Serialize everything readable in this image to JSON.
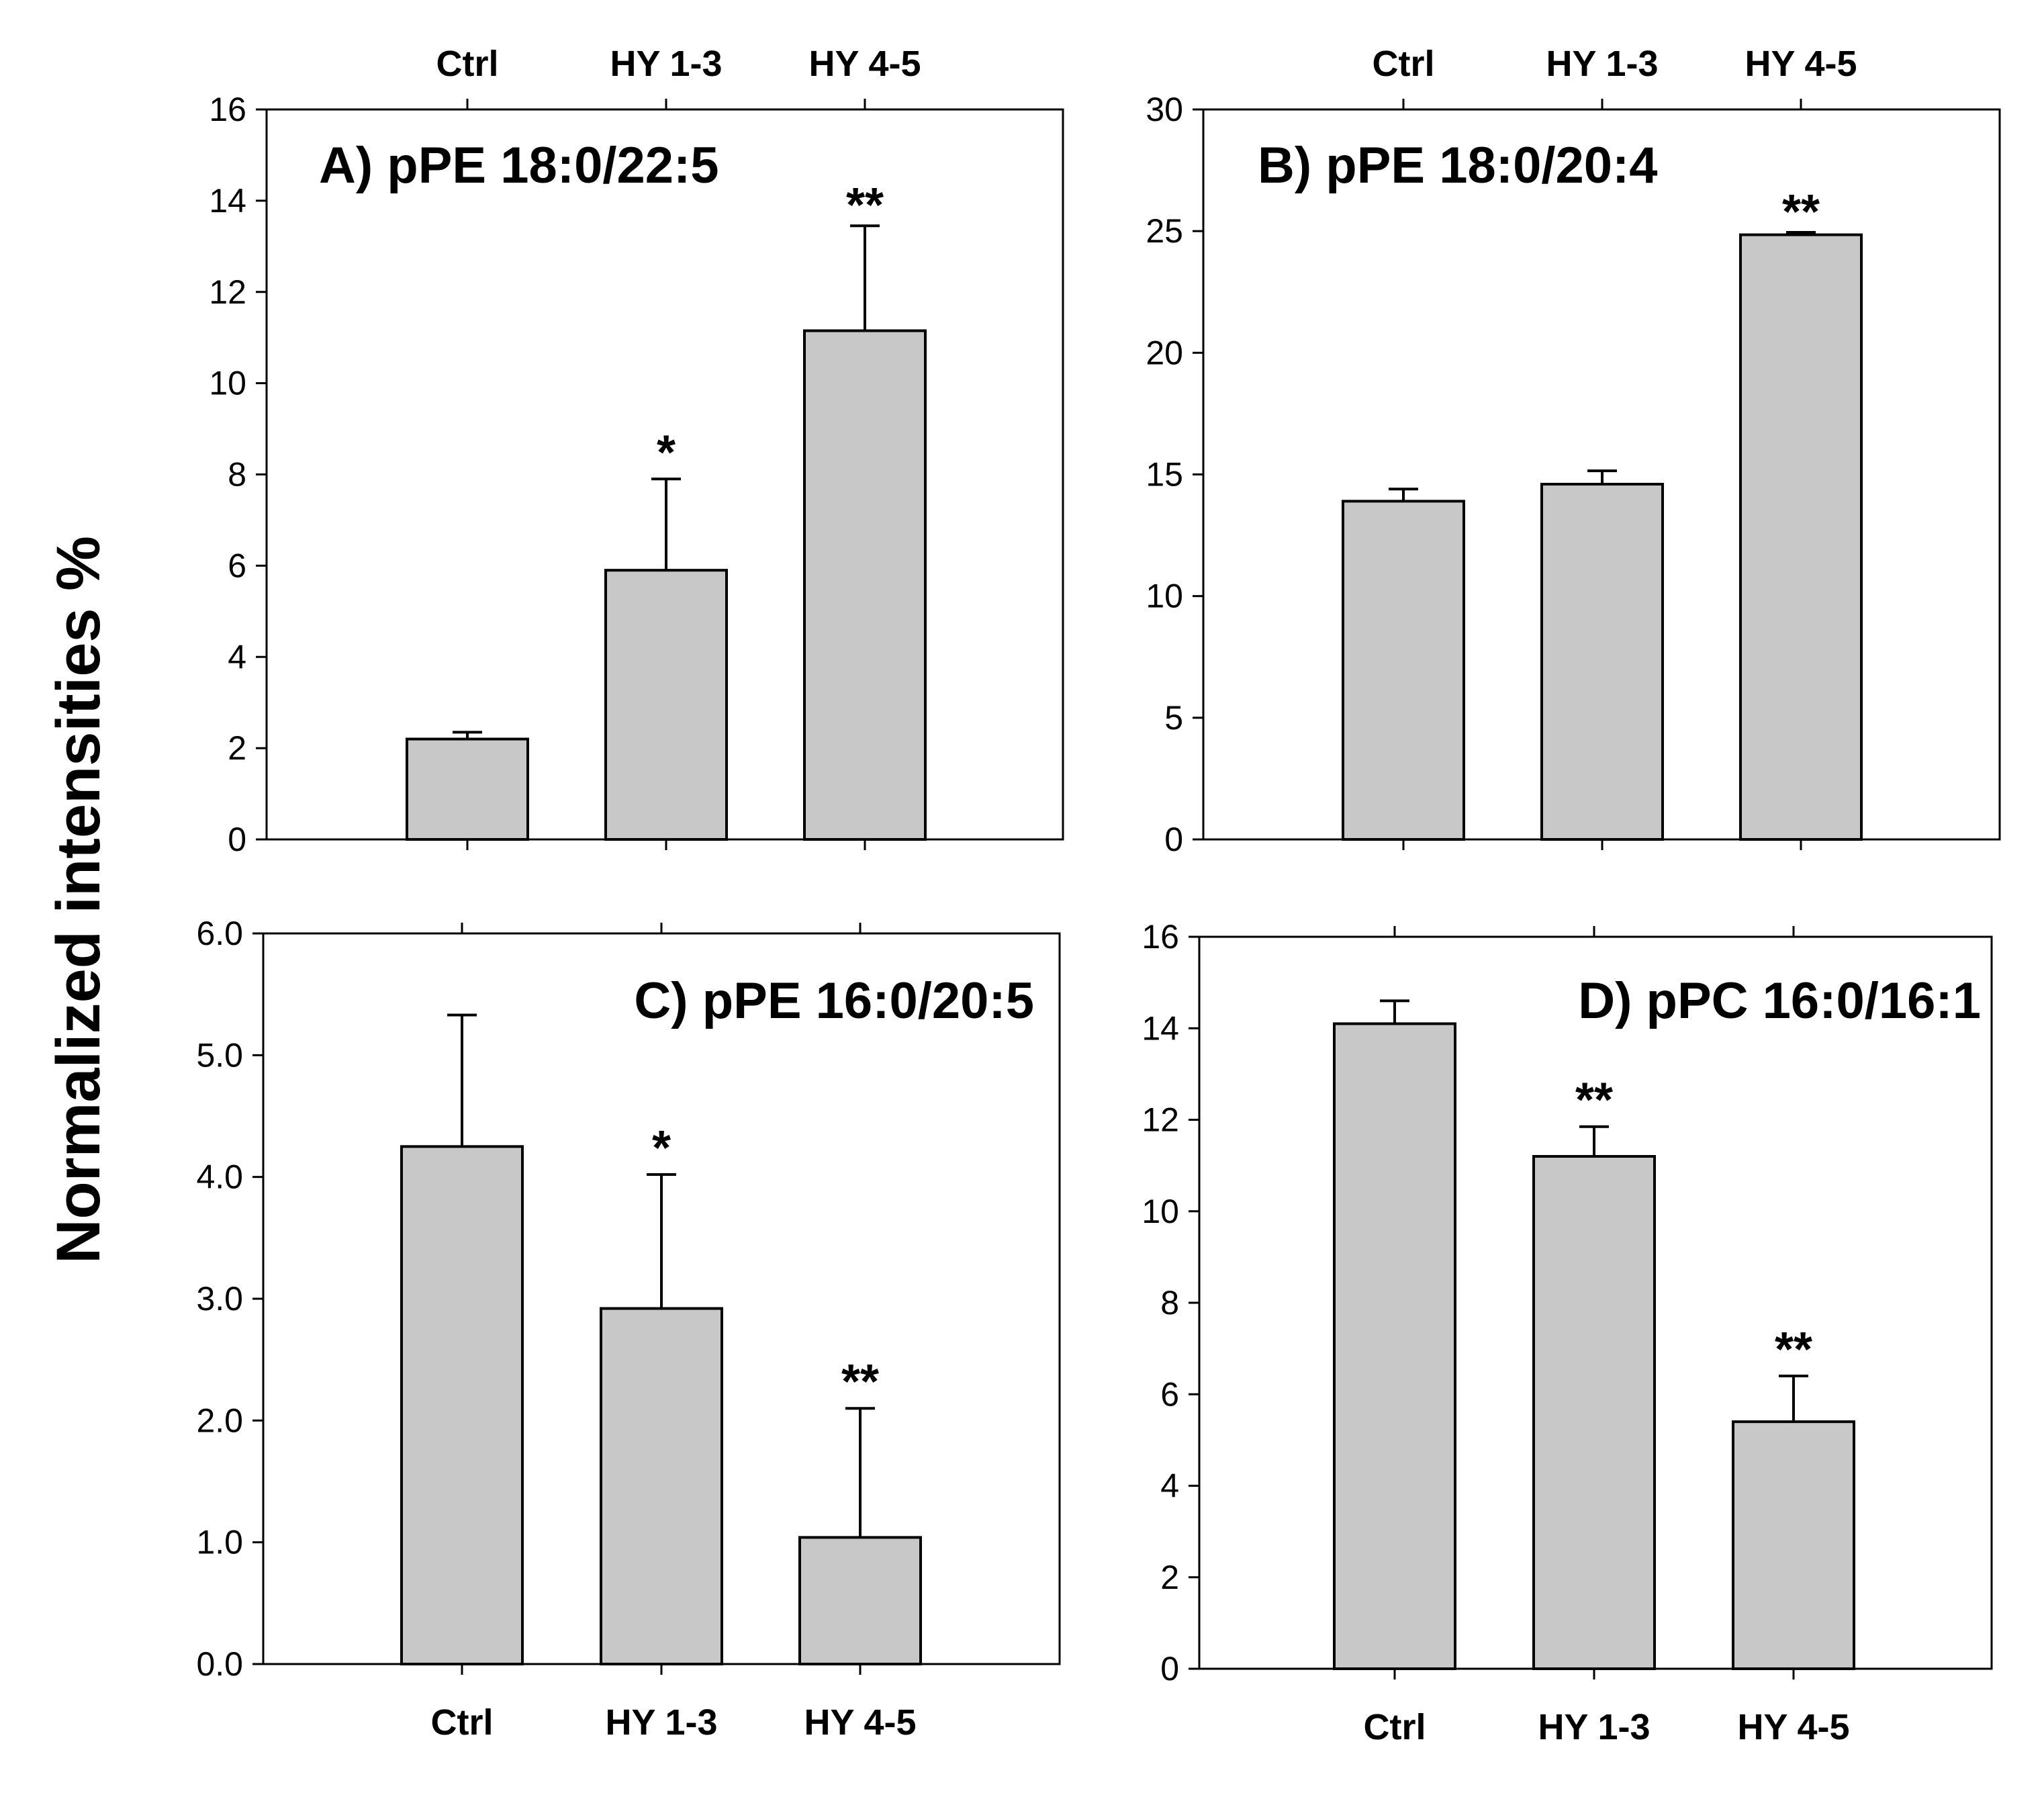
{
  "figure": {
    "ylabel": "Normalized intensities %",
    "colors": {
      "bar_fill": "#c8c8c8",
      "stroke": "#000000"
    }
  },
  "chart_data": [
    {
      "type": "bar",
      "title": "A) pPE 18:0/22:5",
      "categories": [
        "Ctrl",
        "HY 1-3",
        "HY 4-5"
      ],
      "values": [
        2.2,
        5.9,
        11.15
      ],
      "errors": [
        0.15,
        2.0,
        2.3
      ],
      "significance": [
        "",
        "*",
        "**"
      ],
      "ylim": [
        0,
        16
      ],
      "yticks": [
        0,
        2,
        4,
        6,
        8,
        10,
        12,
        14,
        16
      ],
      "ytick_labels": [
        "0",
        "2",
        "4",
        "6",
        "8",
        "10",
        "12",
        "14",
        "16"
      ],
      "category_labels_position": "top"
    },
    {
      "type": "bar",
      "title": "B) pPE 18:0/20:4",
      "categories": [
        "Ctrl",
        "HY 1-3",
        "HY 4-5"
      ],
      "values": [
        13.9,
        14.6,
        24.85
      ],
      "errors": [
        0.5,
        0.55,
        0.1
      ],
      "significance": [
        "",
        "",
        "**"
      ],
      "ylim": [
        0,
        30
      ],
      "yticks": [
        0,
        5,
        10,
        15,
        20,
        25,
        30
      ],
      "ytick_labels": [
        "0",
        "5",
        "10",
        "15",
        "20",
        "25",
        "30"
      ],
      "category_labels_position": "top"
    },
    {
      "type": "bar",
      "title": "C) pPE 16:0/20:5",
      "categories": [
        "Ctrl",
        "HY 1-3",
        "HY 4-5"
      ],
      "values": [
        4.25,
        2.92,
        1.04
      ],
      "errors": [
        1.08,
        1.1,
        1.06
      ],
      "significance": [
        "",
        "*",
        "**"
      ],
      "ylim": [
        0,
        6
      ],
      "yticks": [
        0,
        1,
        2,
        3,
        4,
        5,
        6
      ],
      "ytick_labels": [
        "0.0",
        "1.0",
        "2.0",
        "3.0",
        "4.0",
        "5.0",
        "6.0"
      ],
      "category_labels_position": "bottom"
    },
    {
      "type": "bar",
      "title": "D) pPC 16:0/16:1",
      "categories": [
        "Ctrl",
        "HY 1-3",
        "HY 4-5"
      ],
      "values": [
        14.1,
        11.2,
        5.4
      ],
      "errors": [
        0.5,
        0.65,
        1.0
      ],
      "significance": [
        "",
        "**",
        "**"
      ],
      "ylim": [
        0,
        16
      ],
      "yticks": [
        0,
        2,
        4,
        6,
        8,
        10,
        12,
        14,
        16
      ],
      "ytick_labels": [
        "0",
        "2",
        "4",
        "6",
        "8",
        "10",
        "12",
        "14",
        "16"
      ],
      "category_labels_position": "bottom"
    }
  ]
}
